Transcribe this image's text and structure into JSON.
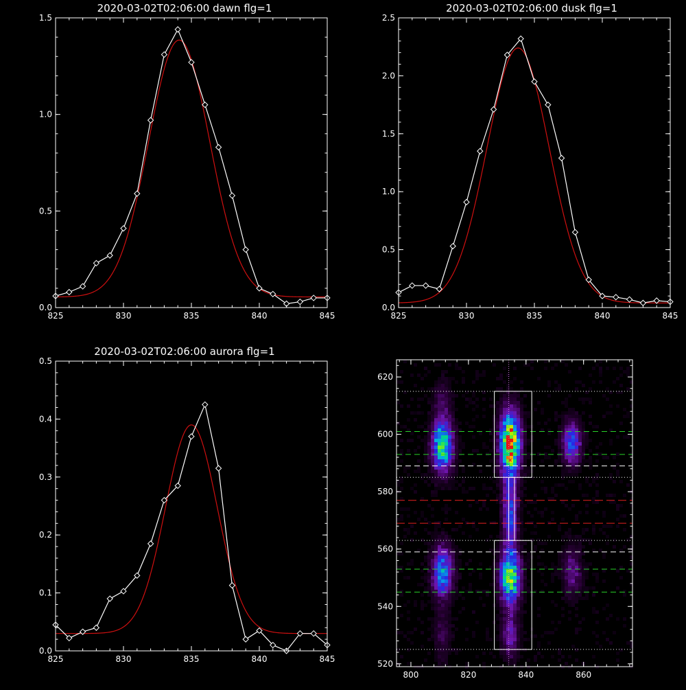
{
  "colors": {
    "background": "#000000",
    "axes": "#ffffff",
    "data_line": "#ffffff",
    "fit_line": "#d01010",
    "box": "#ffffff",
    "green_dash": "#28d228",
    "red_dash": "#e82020",
    "white_dash": "#ffffff",
    "dotted": "#ffffff",
    "vertical_dotted": "#d080e0"
  },
  "chart_data": [
    {
      "id": "dawn",
      "type": "line",
      "title": "2020-03-02T02:06:00 dawn flg=1",
      "xlim": [
        825,
        845
      ],
      "ylim": [
        0,
        1.5
      ],
      "xticks": [
        "825",
        "830",
        "835",
        "840",
        "845"
      ],
      "yticks": [
        "0.0",
        "0.5",
        "1.0",
        "1.5"
      ],
      "grid": false,
      "series": [
        {
          "role": "data",
          "marker": "diamond",
          "x": [
            825,
            826,
            827,
            828,
            829,
            830,
            831,
            832,
            833,
            834,
            835,
            836,
            837,
            838,
            839,
            840,
            841,
            842,
            843,
            844,
            845
          ],
          "y": [
            0.06,
            0.08,
            0.11,
            0.23,
            0.27,
            0.41,
            0.59,
            0.97,
            1.31,
            1.44,
            1.27,
            1.05,
            0.83,
            0.58,
            0.3,
            0.1,
            0.07,
            0.02,
            0.03,
            0.05,
            0.05
          ]
        },
        {
          "role": "fit",
          "curve": "gaussian",
          "amplitude": 1.33,
          "center": 834.1,
          "sigma": 2.25,
          "baseline": 0.055
        }
      ]
    },
    {
      "id": "dusk",
      "type": "line",
      "title": "2020-03-02T02:06:00 dusk flg=1",
      "xlim": [
        825,
        845
      ],
      "ylim": [
        0,
        2.5
      ],
      "xticks": [
        "825",
        "830",
        "835",
        "840",
        "845"
      ],
      "yticks": [
        "0.0",
        "0.5",
        "1.0",
        "1.5",
        "2.0",
        "2.5"
      ],
      "grid": false,
      "series": [
        {
          "role": "data",
          "marker": "diamond",
          "x": [
            825,
            826,
            827,
            828,
            829,
            830,
            831,
            832,
            833,
            834,
            835,
            836,
            837,
            838,
            839,
            840,
            841,
            842,
            843,
            844,
            845
          ],
          "y": [
            0.13,
            0.19,
            0.19,
            0.16,
            0.53,
            0.91,
            1.35,
            1.71,
            2.18,
            2.32,
            1.95,
            1.75,
            1.29,
            0.65,
            0.24,
            0.1,
            0.09,
            0.07,
            0.04,
            0.06,
            0.05
          ]
        },
        {
          "role": "fit",
          "curve": "gaussian",
          "amplitude": 2.2,
          "center": 833.8,
          "sigma": 2.3,
          "baseline": 0.04
        }
      ]
    },
    {
      "id": "aurora",
      "type": "line",
      "title": "2020-03-02T02:06:00 aurora flg=1",
      "xlim": [
        825,
        845
      ],
      "ylim": [
        0,
        0.5
      ],
      "xticks": [
        "825",
        "830",
        "835",
        "840",
        "845"
      ],
      "yticks": [
        "0.0",
        "0.1",
        "0.2",
        "0.3",
        "0.4",
        "0.5"
      ],
      "grid": false,
      "series": [
        {
          "role": "data",
          "marker": "diamond",
          "x": [
            825,
            826,
            827,
            828,
            829,
            830,
            831,
            832,
            833,
            834,
            835,
            836,
            837,
            838,
            839,
            840,
            841,
            842,
            843,
            844,
            845
          ],
          "y": [
            0.045,
            0.022,
            0.033,
            0.04,
            0.09,
            0.103,
            0.13,
            0.185,
            0.26,
            0.285,
            0.37,
            0.425,
            0.315,
            0.113,
            0.02,
            0.035,
            0.01,
            0.0,
            0.03,
            0.03,
            0.01
          ]
        },
        {
          "role": "fit",
          "curve": "gaussian",
          "amplitude": 0.36,
          "center": 835.0,
          "sigma": 1.9,
          "baseline": 0.03
        }
      ]
    },
    {
      "id": "image",
      "type": "heatmap",
      "title": "",
      "xlim": [
        795,
        877
      ],
      "ylim": [
        519,
        626
      ],
      "xticks": [
        "800",
        "820",
        "840",
        "860"
      ],
      "yticks": [
        "520",
        "540",
        "560",
        "580",
        "600",
        "620"
      ],
      "colormap": "rainbow",
      "emission_blobs": [
        {
          "x": 834.5,
          "y": 597,
          "sx": 2.3,
          "sy": 7,
          "amp": 1.0
        },
        {
          "x": 834.5,
          "y": 550,
          "sx": 2.3,
          "sy": 6,
          "amp": 0.75
        },
        {
          "x": 834.5,
          "y": 572,
          "sx": 1.8,
          "sy": 10,
          "amp": 0.38
        },
        {
          "x": 811,
          "y": 596,
          "sx": 2.4,
          "sy": 6,
          "amp": 0.7
        },
        {
          "x": 811,
          "y": 552,
          "sx": 2.4,
          "sy": 6,
          "amp": 0.5
        },
        {
          "x": 856,
          "y": 597,
          "sx": 2.2,
          "sy": 5,
          "amp": 0.42
        },
        {
          "x": 856,
          "y": 552,
          "sx": 2.2,
          "sy": 6,
          "amp": 0.2
        },
        {
          "x": 834.5,
          "y": 530,
          "sx": 2,
          "sy": 5,
          "amp": 0.25
        },
        {
          "x": 811,
          "y": 530,
          "sx": 2,
          "sy": 6,
          "amp": 0.12
        },
        {
          "x": 811,
          "y": 612,
          "sx": 2,
          "sy": 5,
          "amp": 0.12
        }
      ],
      "boxes": [
        {
          "x0": 829,
          "x1": 842,
          "y0": 585,
          "y1": 615
        },
        {
          "x0": 829,
          "x1": 842,
          "y0": 525,
          "y1": 563
        },
        {
          "x0": 834,
          "x1": 836,
          "y0": 563,
          "y1": 585
        }
      ],
      "vertical_dotted_x": 834,
      "dotted_y": [
        615,
        585,
        563,
        525
      ],
      "green_dashed_y": [
        601,
        593,
        553,
        545
      ],
      "white_dashed_y": [
        589,
        559
      ],
      "red_dashed_y": [
        577,
        569
      ],
      "red_markers": [
        {
          "x": 833.5,
          "y": 599
        },
        {
          "x": 834.2,
          "y": 597
        },
        {
          "x": 833.8,
          "y": 595
        },
        {
          "x": 834.5,
          "y": 591
        }
      ]
    }
  ]
}
